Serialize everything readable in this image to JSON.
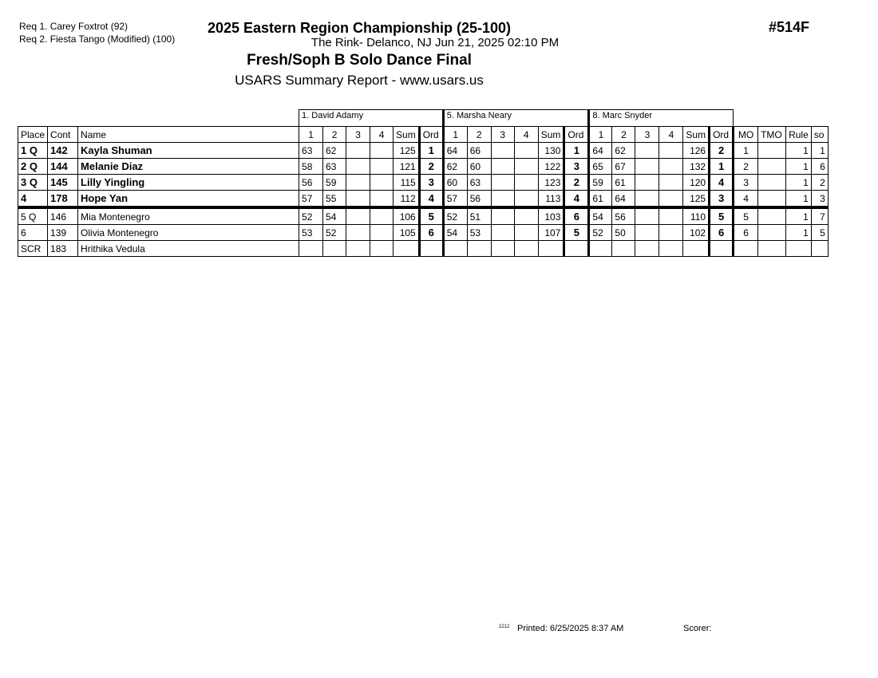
{
  "requirements": [
    "Req  1.  Carey Foxtrot (92)",
    "Req  2.  Fiesta Tango (Modified) (100)"
  ],
  "header": {
    "event_title": "2025 Eastern Region Championship (25-100)",
    "event_number": "#514F",
    "location_date": "The Rink- Delanco, NJ  Jun 21, 2025  02:10 PM",
    "event_name": "Fresh/Soph B Solo Dance Final",
    "report": "USARS Summary Report - www.usars.us"
  },
  "judges": [
    "1.  David Adamy",
    "5.  Marsha Neary",
    "8.  Marc Snyder"
  ],
  "columns": {
    "place": "Place",
    "cont": "Cont",
    "name": "Name",
    "marks": [
      "1",
      "2",
      "3",
      "4"
    ],
    "sum": "Sum",
    "ord": "Ord",
    "mo": "MO",
    "tmo": "TMO",
    "rule": "Rule",
    "so": "so"
  },
  "rows": [
    {
      "place": "1 Q",
      "cont": "142",
      "name": "Kayla Shuman",
      "bold": true,
      "judges": [
        {
          "m": [
            "63",
            "62",
            "",
            ""
          ],
          "sum": "125",
          "ord": "1"
        },
        {
          "m": [
            "64",
            "66",
            "",
            ""
          ],
          "sum": "130",
          "ord": "1"
        },
        {
          "m": [
            "64",
            "62",
            "",
            ""
          ],
          "sum": "126",
          "ord": "2"
        }
      ],
      "mo": "1",
      "tmo": "",
      "rule": "1",
      "so": "1"
    },
    {
      "place": "2 Q",
      "cont": "144",
      "name": "Melanie Diaz",
      "bold": true,
      "judges": [
        {
          "m": [
            "58",
            "63",
            "",
            ""
          ],
          "sum": "121",
          "ord": "2"
        },
        {
          "m": [
            "62",
            "60",
            "",
            ""
          ],
          "sum": "122",
          "ord": "3"
        },
        {
          "m": [
            "65",
            "67",
            "",
            ""
          ],
          "sum": "132",
          "ord": "1"
        }
      ],
      "mo": "2",
      "tmo": "",
      "rule": "1",
      "so": "6"
    },
    {
      "place": "3 Q",
      "cont": "145",
      "name": "Lilly Yingling",
      "bold": true,
      "judges": [
        {
          "m": [
            "56",
            "59",
            "",
            ""
          ],
          "sum": "115",
          "ord": "3"
        },
        {
          "m": [
            "60",
            "63",
            "",
            ""
          ],
          "sum": "123",
          "ord": "2"
        },
        {
          "m": [
            "59",
            "61",
            "",
            ""
          ],
          "sum": "120",
          "ord": "4"
        }
      ],
      "mo": "3",
      "tmo": "",
      "rule": "1",
      "so": "2"
    },
    {
      "place": "4",
      "cont": "178",
      "name": "Hope Yan",
      "bold": true,
      "judges": [
        {
          "m": [
            "57",
            "55",
            "",
            ""
          ],
          "sum": "112",
          "ord": "4"
        },
        {
          "m": [
            "57",
            "56",
            "",
            ""
          ],
          "sum": "113",
          "ord": "4"
        },
        {
          "m": [
            "61",
            "64",
            "",
            ""
          ],
          "sum": "125",
          "ord": "3"
        }
      ],
      "mo": "4",
      "tmo": "",
      "rule": "1",
      "so": "3"
    },
    {
      "place": "5 Q",
      "cont": "146",
      "name": "Mia Montenegro",
      "bold": false,
      "judges": [
        {
          "m": [
            "52",
            "54",
            "",
            ""
          ],
          "sum": "106",
          "ord": "5"
        },
        {
          "m": [
            "52",
            "51",
            "",
            ""
          ],
          "sum": "103",
          "ord": "6"
        },
        {
          "m": [
            "54",
            "56",
            "",
            ""
          ],
          "sum": "110",
          "ord": "5"
        }
      ],
      "mo": "5",
      "tmo": "",
      "rule": "1",
      "so": "7"
    },
    {
      "place": "6",
      "cont": "139",
      "name": "Olivia Montenegro",
      "bold": false,
      "judges": [
        {
          "m": [
            "53",
            "52",
            "",
            ""
          ],
          "sum": "105",
          "ord": "6"
        },
        {
          "m": [
            "54",
            "53",
            "",
            ""
          ],
          "sum": "107",
          "ord": "5"
        },
        {
          "m": [
            "52",
            "50",
            "",
            ""
          ],
          "sum": "102",
          "ord": "6"
        }
      ],
      "mo": "6",
      "tmo": "",
      "rule": "1",
      "so": "5"
    },
    {
      "place": "SCR",
      "cont": "183",
      "name": "Hrithika Vedula",
      "bold": false,
      "judges": [
        {
          "m": [
            "",
            "",
            "",
            ""
          ],
          "sum": "",
          "ord": ""
        },
        {
          "m": [
            "",
            "",
            "",
            ""
          ],
          "sum": "",
          "ord": ""
        },
        {
          "m": [
            "",
            "",
            "",
            ""
          ],
          "sum": "",
          "ord": ""
        }
      ],
      "mo": "",
      "tmo": "",
      "rule": "",
      "so": ""
    }
  ],
  "footer": {
    "code": "2212",
    "printed": "Printed:  6/25/2025  8:37 AM",
    "scorer": "Scorer:"
  }
}
